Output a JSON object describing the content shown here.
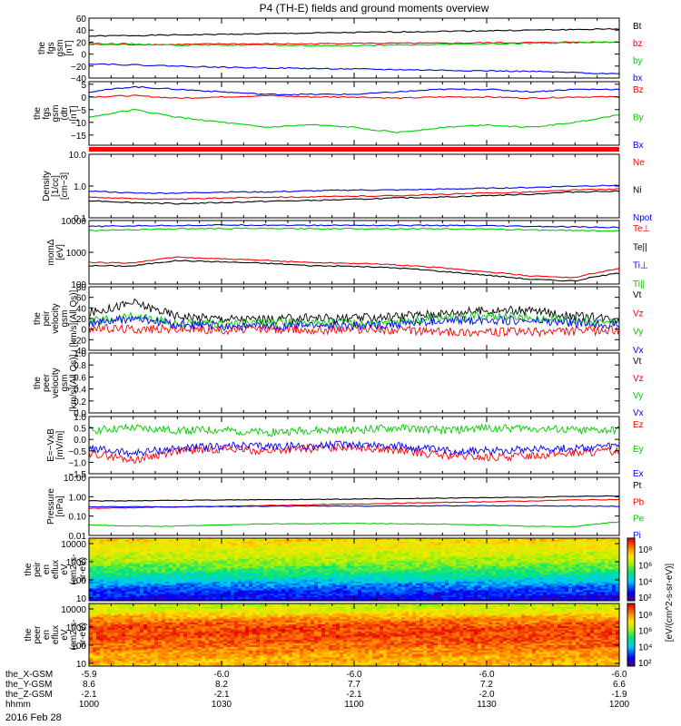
{
  "title": "P4 (TH-E) fields and ground moments overview",
  "date_label": "2016 Feb 28",
  "orbit_rows": [
    {
      "label": "the_X-GSM",
      "values": [
        "-5.9",
        "-6.0",
        "-6.0",
        "-6.0",
        "-6.0"
      ]
    },
    {
      "label": "the_Y-GSM",
      "values": [
        "8.6",
        "8.2",
        "7.7",
        "7.2",
        "6.6"
      ]
    },
    {
      "label": "the_Z-GSM",
      "values": [
        "-2.1",
        "-2.1",
        "-2.1",
        "-2.0",
        "-1.9"
      ]
    },
    {
      "label": "hhmm",
      "values": [
        "1000",
        "1030",
        "1100",
        "1130",
        "1200"
      ]
    }
  ],
  "colorbar": {
    "label": "[eV/(cm^2-s-sr-eV)]",
    "ticks_top": [
      "10⁸",
      "10⁶",
      "10⁴",
      "10²"
    ],
    "ticks_bottom": [
      "10⁸",
      "10⁶",
      "10⁴",
      "10²"
    ]
  },
  "chart_data": [
    {
      "type": "line",
      "id": "p1",
      "ylabel": [
        "the",
        "fgs",
        "gsm",
        "[nT]"
      ],
      "ylim": [
        -40,
        60
      ],
      "yticks": [
        "60",
        "40",
        "20",
        "0",
        "−20",
        "−40"
      ],
      "series": [
        {
          "name": "Bt",
          "color": "#000000",
          "values": [
            30,
            31,
            32,
            33,
            34,
            35,
            36,
            37,
            38,
            39,
            40,
            41,
            42
          ]
        },
        {
          "name": "bz",
          "color": "#ff0000",
          "values": [
            16,
            16,
            16,
            17,
            17,
            17,
            18,
            18,
            18,
            19,
            19,
            20,
            20
          ]
        },
        {
          "name": "by",
          "color": "#00cc00",
          "values": [
            18,
            17,
            15,
            15,
            15,
            14,
            14,
            15,
            16,
            17,
            18,
            19,
            20
          ]
        },
        {
          "name": "bx",
          "color": "#0000ff",
          "values": [
            -16,
            -18,
            -20,
            -22,
            -23,
            -24,
            -25,
            -26,
            -27,
            -28,
            -29,
            -31,
            -33
          ]
        }
      ]
    },
    {
      "type": "line",
      "id": "p2",
      "ylabel": [
        "the",
        "fgs",
        "gsm",
        "(dtr",
        "[nT]"
      ],
      "ylim": [
        -19,
        6
      ],
      "yticks": [
        "5",
        "0",
        "−5",
        "−10",
        "−15"
      ],
      "series": [
        {
          "name": "Bz",
          "color": "#ff0000",
          "values": [
            0,
            0.5,
            -0.5,
            0,
            0.5,
            0,
            0,
            -0.5,
            0,
            0,
            -0.5,
            0,
            0
          ]
        },
        {
          "name": "By",
          "color": "#00cc00",
          "values": [
            -8,
            -5,
            -8,
            -10,
            -12,
            -11,
            -12,
            -14,
            -12,
            -11,
            -12,
            -10,
            -7
          ]
        },
        {
          "name": "Bx",
          "color": "#0000ff",
          "values": [
            2,
            4,
            3,
            2,
            1,
            1,
            1,
            2,
            3,
            3,
            2,
            3,
            3
          ]
        }
      ]
    },
    {
      "type": "line",
      "id": "p3",
      "ylabel": [
        "Density",
        "[1/cc]",
        "[cm−3]"
      ],
      "log": true,
      "ylim": [
        0.1,
        10
      ],
      "yticks": [
        "10.0",
        "1.0",
        "0.1"
      ],
      "series": [
        {
          "name": "Ne",
          "color": "#ff0000",
          "values": [
            0.45,
            0.4,
            0.38,
            0.42,
            0.45,
            0.45,
            0.48,
            0.5,
            0.55,
            0.6,
            0.65,
            0.75,
            0.8
          ]
        },
        {
          "name": "Ni",
          "color": "#000000",
          "values": [
            0.35,
            0.3,
            0.28,
            0.3,
            0.33,
            0.35,
            0.38,
            0.42,
            0.45,
            0.5,
            0.55,
            0.65,
            0.7
          ]
        },
        {
          "name": "Npot",
          "color": "#0000ff",
          "values": [
            0.7,
            0.6,
            0.6,
            0.65,
            0.65,
            0.7,
            0.75,
            0.75,
            0.8,
            0.85,
            0.9,
            1.0,
            1.05
          ]
        }
      ]
    },
    {
      "type": "line",
      "id": "p4",
      "ylabel": [
        "momΔ",
        "[eV]"
      ],
      "log": true,
      "ylim": [
        100,
        10000
      ],
      "yticks": [
        "10000",
        "1000",
        "100"
      ],
      "series": [
        {
          "name": "Te⊥",
          "color": "#ff0000",
          "values": [
            480,
            460,
            700,
            620,
            550,
            480,
            450,
            400,
            320,
            240,
            180,
            160,
            300
          ]
        },
        {
          "name": "Te||",
          "color": "#000000",
          "values": [
            380,
            370,
            550,
            500,
            450,
            380,
            360,
            320,
            250,
            190,
            140,
            125,
            220
          ]
        },
        {
          "name": "Ti⊥",
          "color": "#0000ff",
          "values": [
            6500,
            6800,
            7000,
            7200,
            7200,
            7000,
            7100,
            7000,
            7000,
            6800,
            6500,
            6300,
            6000
          ]
        },
        {
          "name": "Ti||",
          "color": "#00cc00",
          "values": [
            4800,
            5200,
            5500,
            5600,
            5600,
            5500,
            5600,
            5500,
            5500,
            5300,
            5100,
            4900,
            4700
          ]
        }
      ]
    },
    {
      "type": "line",
      "id": "p5",
      "ylabel": [
        "the",
        "peir",
        "velocity",
        "gsm",
        "[km/s](All Qs)]"
      ],
      "ylim": [
        -40,
        80
      ],
      "yticks": [
        "80",
        "60",
        "40",
        "20",
        "0",
        "−20",
        "−40"
      ],
      "series": [
        {
          "name": "Vt",
          "color": "#000000",
          "values": [
            30,
            50,
            25,
            20,
            18,
            22,
            20,
            25,
            30,
            35,
            35,
            25,
            20
          ]
        },
        {
          "name": "Vz",
          "color": "#ff0000",
          "values": [
            2,
            0,
            0,
            -2,
            0,
            -2,
            0,
            -2,
            -5,
            -6,
            -5,
            -4,
            -2
          ]
        },
        {
          "name": "Vy",
          "color": "#00cc00",
          "values": [
            15,
            25,
            10,
            10,
            12,
            14,
            10,
            15,
            20,
            25,
            22,
            15,
            12
          ]
        },
        {
          "name": "Vx",
          "color": "#0000ff",
          "values": [
            10,
            20,
            8,
            6,
            5,
            8,
            6,
            10,
            15,
            18,
            15,
            12,
            8
          ]
        }
      ]
    },
    {
      "type": "line",
      "id": "p6",
      "ylabel": [
        "the",
        "peer",
        "velocity",
        "gsm",
        "[km/s](All Qs)]"
      ],
      "ylim": [
        0,
        1
      ],
      "yticks": [
        "1.0",
        "0.8",
        "0.6",
        "0.4",
        "0.2",
        "0.0"
      ],
      "series": [
        {
          "name": "Vt",
          "color": "#000000",
          "values": []
        },
        {
          "name": "Vz",
          "color": "#ff0000",
          "values": []
        },
        {
          "name": "Vy",
          "color": "#00cc00",
          "values": []
        },
        {
          "name": "Vx",
          "color": "#0000ff",
          "values": []
        }
      ]
    },
    {
      "type": "line",
      "id": "p7",
      "ylabel": [
        "E=−VxB",
        "[mV/m]"
      ],
      "ylim": [
        -1.5,
        1.0
      ],
      "yticks": [
        "1.0",
        "0.5",
        "0.0",
        "−0.5",
        "−1.0",
        "−1.5"
      ],
      "series": [
        {
          "name": "Ez",
          "color": "#ff0000",
          "values": [
            -0.6,
            -0.9,
            -0.5,
            -0.4,
            -0.5,
            -0.4,
            -0.3,
            -0.5,
            -0.7,
            -0.8,
            -0.7,
            -0.6,
            -0.5
          ]
        },
        {
          "name": "Ey",
          "color": "#00cc00",
          "values": [
            0.4,
            0.5,
            0.4,
            0.4,
            0.3,
            0.4,
            0.4,
            0.5,
            0.4,
            0.5,
            0.5,
            0.4,
            0.4
          ]
        },
        {
          "name": "Ex",
          "color": "#0000ff",
          "values": [
            -0.4,
            -0.6,
            -0.4,
            -0.3,
            -0.3,
            -0.3,
            -0.2,
            -0.3,
            -0.5,
            -0.5,
            -0.4,
            -0.4,
            -0.3
          ]
        }
      ]
    },
    {
      "type": "line",
      "id": "p8",
      "ylabel": [
        "Pressure",
        "[nPa]"
      ],
      "log": true,
      "ylim": [
        0.01,
        10
      ],
      "yticks": [
        "10.00",
        "1.00",
        "0.10",
        "0.01"
      ],
      "series": [
        {
          "name": "Pt",
          "color": "#000000",
          "values": [
            0.6,
            0.62,
            0.65,
            0.68,
            0.7,
            0.72,
            0.75,
            0.8,
            0.85,
            0.9,
            0.95,
            1.05,
            1.1
          ]
        },
        {
          "name": "Pb",
          "color": "#ff0000",
          "values": [
            0.25,
            0.27,
            0.3,
            0.32,
            0.35,
            0.38,
            0.42,
            0.46,
            0.5,
            0.55,
            0.6,
            0.68,
            0.72
          ]
        },
        {
          "name": "Pe",
          "color": "#00cc00",
          "values": [
            0.035,
            0.03,
            0.03,
            0.035,
            0.04,
            0.04,
            0.042,
            0.04,
            0.038,
            0.035,
            0.03,
            0.028,
            0.05
          ]
        },
        {
          "name": "Pi",
          "color": "#0000ff",
          "values": [
            0.3,
            0.3,
            0.3,
            0.31,
            0.32,
            0.33,
            0.33,
            0.33,
            0.34,
            0.34,
            0.34,
            0.33,
            0.32
          ]
        }
      ]
    },
    {
      "type": "heatmap",
      "id": "p9",
      "ylabel": [
        "the",
        "peir",
        "en",
        "eflux",
        "eV",
        "(cm2-s-",
        "sr-eV)"
      ],
      "log": true,
      "ylim": [
        7,
        20000
      ],
      "yticks": [
        "10000",
        "1000",
        "100",
        "10"
      ],
      "z_log10_by_row": [
        6.8,
        6.5,
        6.2,
        5.8,
        5.2,
        4.5,
        3.6,
        3.0,
        2.6
      ]
    },
    {
      "type": "heatmap",
      "id": "p10",
      "ylabel": [
        "the",
        "peer",
        "en",
        "eflux",
        "eV",
        "(cm2-s-",
        "sr-eV)"
      ],
      "log": true,
      "ylim": [
        7,
        20000
      ],
      "yticks": [
        "10000",
        "1000",
        "100",
        "10"
      ],
      "z_log10_by_row": [
        6.0,
        6.5,
        7.5,
        8.0,
        8.0,
        7.8,
        7.5,
        7.2,
        7.0
      ]
    }
  ]
}
